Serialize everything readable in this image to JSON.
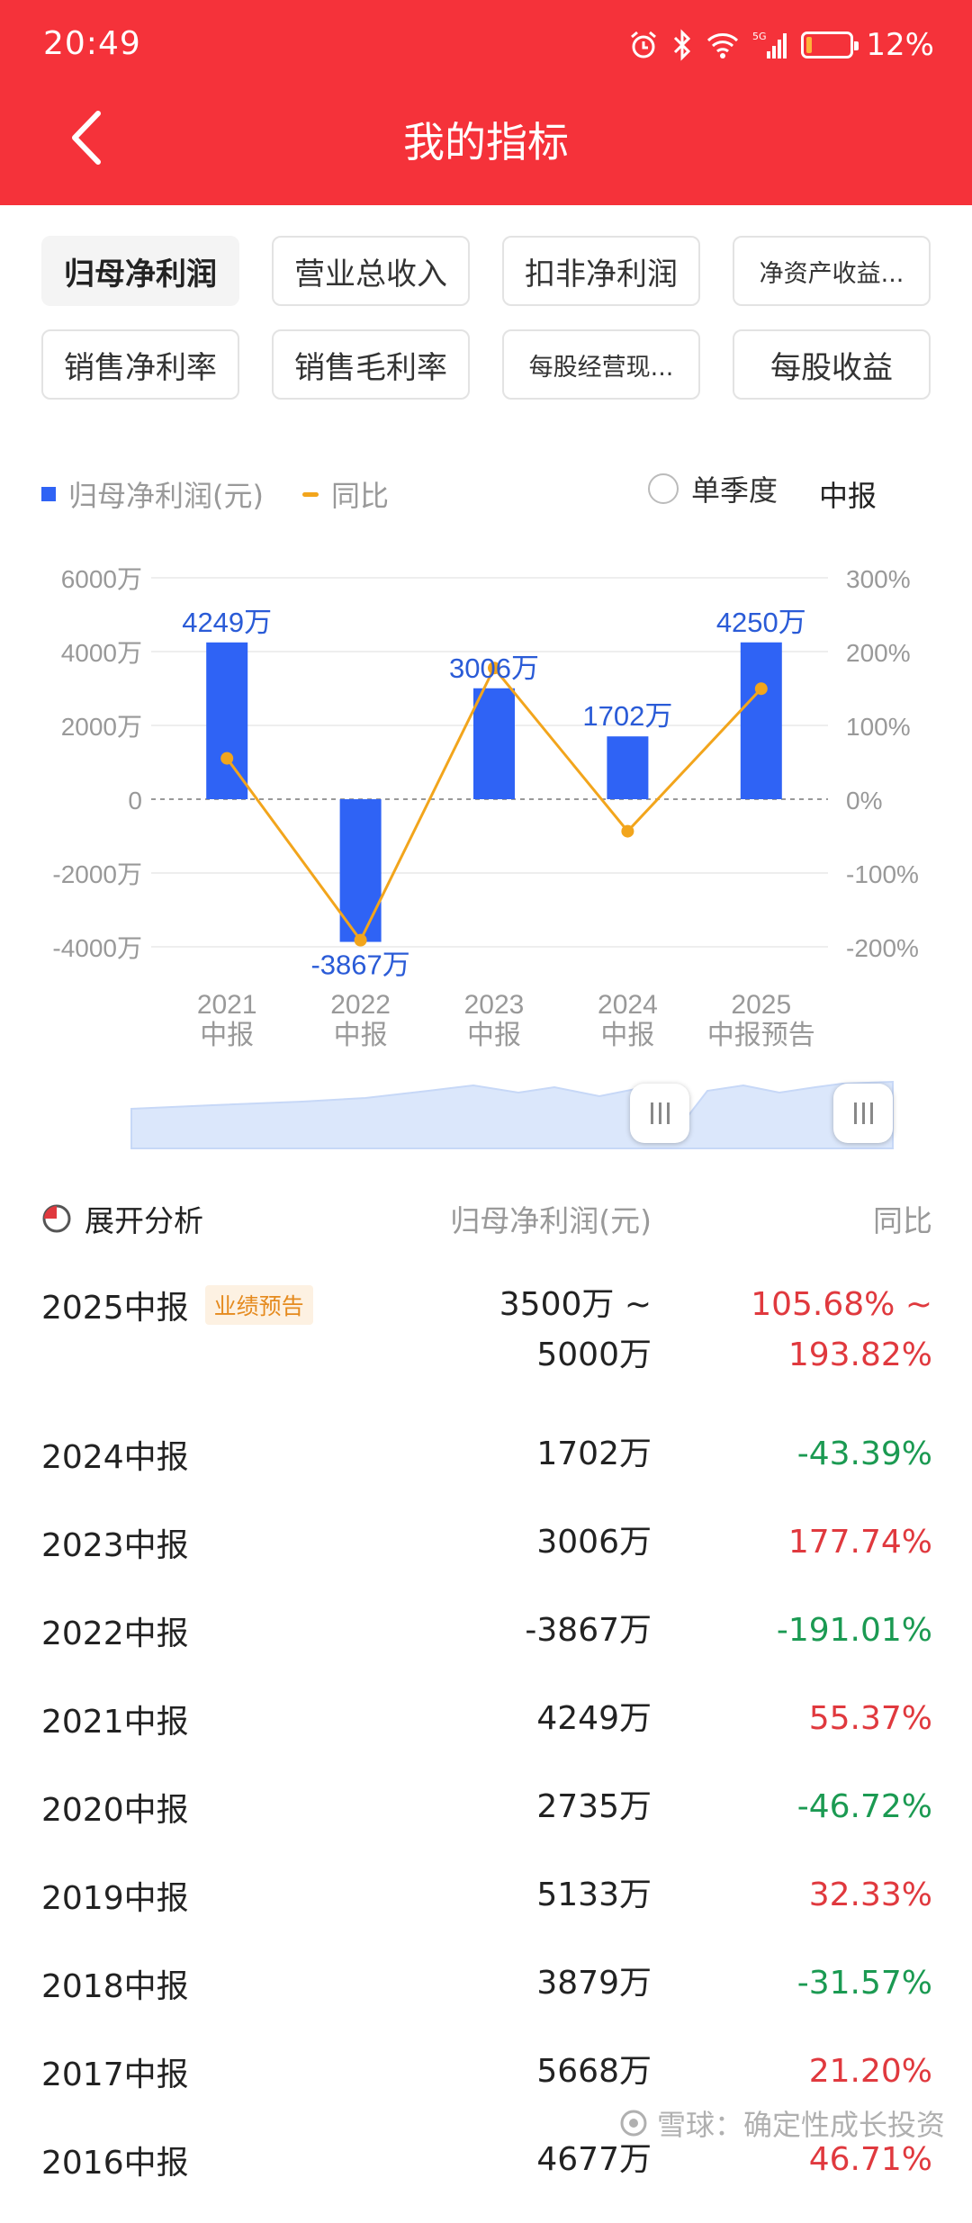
{
  "status_bar": {
    "time": "20:49",
    "network": "5G",
    "battery_percent": "12%",
    "battery_level": 0.12
  },
  "header": {
    "title": "我的指标"
  },
  "metric_tabs": [
    {
      "label": "归母净利润",
      "active": true
    },
    {
      "label": "营业总收入",
      "active": false
    },
    {
      "label": "扣非净利润",
      "active": false
    },
    {
      "label": "净资产收益...",
      "active": false
    },
    {
      "label": "销售净利率",
      "active": false
    },
    {
      "label": "销售毛利率",
      "active": false
    },
    {
      "label": "每股经营现...",
      "active": false
    },
    {
      "label": "每股收益",
      "active": false
    }
  ],
  "legend": {
    "bar_label": "归母净利润(元)",
    "line_label": "同比",
    "bar_color": "#2f63f5",
    "line_color": "#f2a51c"
  },
  "options": {
    "quarterly": "单季度",
    "period": "中报"
  },
  "chart_data": {
    "type": "bar",
    "categories": [
      "2021\n中报",
      "2022\n中报",
      "2023\n中报",
      "2024\n中报",
      "2025\n中报预告"
    ],
    "series": [
      {
        "name": "归母净利润(元)",
        "type": "bar",
        "values": [
          4249,
          -3867,
          3006,
          1702,
          4250
        ],
        "labels": [
          "4249万",
          "-3867万",
          "3006万",
          "1702万",
          "4250万"
        ],
        "axis": "left"
      },
      {
        "name": "同比",
        "type": "line",
        "values": [
          55.37,
          -191.01,
          177.74,
          -43.39,
          149.75
        ],
        "axis": "right"
      }
    ],
    "left_axis": {
      "ticks": [
        "6000万",
        "4000万",
        "2000万",
        "0",
        "-2000万",
        "-4000万"
      ],
      "ylim": [
        -5000,
        6000
      ]
    },
    "right_axis": {
      "ticks": [
        "300%",
        "200%",
        "100%",
        "0%",
        "-100%",
        "-200%"
      ],
      "ylim": [
        -250,
        300
      ]
    },
    "zero_line": "dashed"
  },
  "table": {
    "analysis_label": "展开分析",
    "col_value": "归母净利润(元)",
    "col_yoy": "同比",
    "rows": [
      {
        "period": "2025中报",
        "tag": "业绩预告",
        "value": "3500万 ~",
        "value2": "5000万",
        "yoy": "105.68% ~",
        "yoy2": "193.82%",
        "trend": "pos"
      },
      {
        "period": "2024中报",
        "value": "1702万",
        "yoy": "-43.39%",
        "trend": "neg"
      },
      {
        "period": "2023中报",
        "value": "3006万",
        "yoy": "177.74%",
        "trend": "pos"
      },
      {
        "period": "2022中报",
        "value": "-3867万",
        "yoy": "-191.01%",
        "trend": "neg"
      },
      {
        "period": "2021中报",
        "value": "4249万",
        "yoy": "55.37%",
        "trend": "pos"
      },
      {
        "period": "2020中报",
        "value": "2735万",
        "yoy": "-46.72%",
        "trend": "neg"
      },
      {
        "period": "2019中报",
        "value": "5133万",
        "yoy": "32.33%",
        "trend": "pos"
      },
      {
        "period": "2018中报",
        "value": "3879万",
        "yoy": "-31.57%",
        "trend": "neg"
      },
      {
        "period": "2017中报",
        "value": "5668万",
        "yoy": "21.20%",
        "trend": "pos"
      },
      {
        "period": "2016中报",
        "value": "4677万",
        "yoy": "46.71%",
        "trend": "pos"
      }
    ]
  },
  "watermark": "雪球：确定性成长投资"
}
